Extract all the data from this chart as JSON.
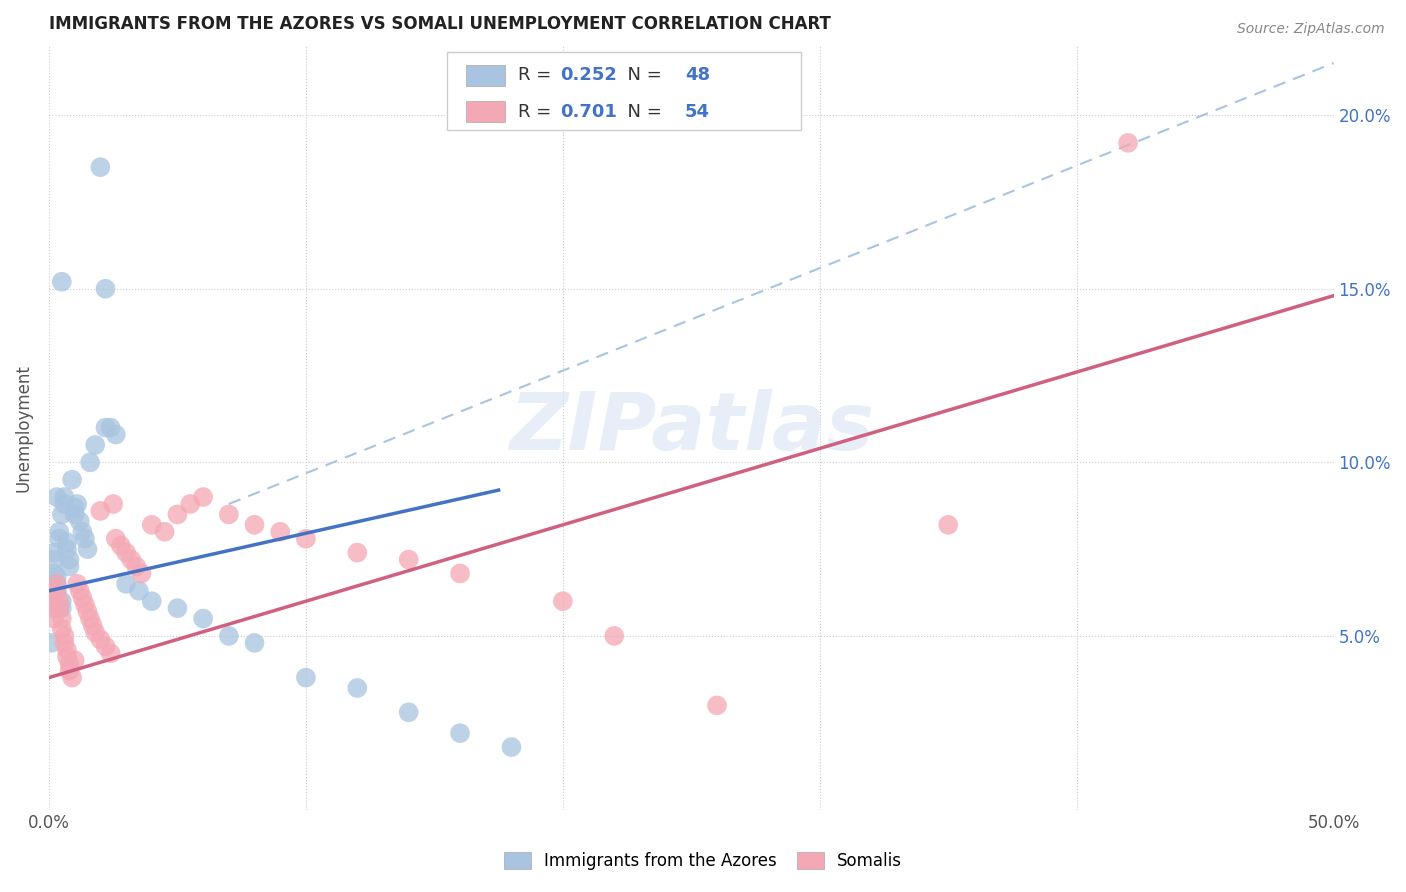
{
  "title": "IMMIGRANTS FROM THE AZORES VS SOMALI UNEMPLOYMENT CORRELATION CHART",
  "source": "Source: ZipAtlas.com",
  "ylabel": "Unemployment",
  "watermark": "ZIPatlas",
  "xlim": [
    0.0,
    0.5
  ],
  "ylim": [
    0.0,
    0.22
  ],
  "azores_color": "#a8c4e0",
  "somali_color": "#f4a7b5",
  "azores_line_color": "#4472c4",
  "somali_line_color": "#d06080",
  "dashed_line_color": "#a8c4e0",
  "legend_bottom_azores": "Immigrants from the Azores",
  "legend_bottom_somali": "Somalis",
  "azores_R": "0.252",
  "azores_N": "48",
  "somali_R": "0.701",
  "somali_N": "54",
  "azores_scatter_x": [
    0.001,
    0.001,
    0.002,
    0.002,
    0.002,
    0.003,
    0.003,
    0.003,
    0.004,
    0.004,
    0.005,
    0.005,
    0.005,
    0.006,
    0.006,
    0.007,
    0.007,
    0.008,
    0.008,
    0.009,
    0.01,
    0.01,
    0.011,
    0.012,
    0.013,
    0.014,
    0.015,
    0.016,
    0.018,
    0.02,
    0.022,
    0.024,
    0.026,
    0.03,
    0.035,
    0.04,
    0.05,
    0.06,
    0.07,
    0.08,
    0.1,
    0.12,
    0.14,
    0.16,
    0.18,
    0.022,
    0.005,
    0.003
  ],
  "azores_scatter_y": [
    0.065,
    0.048,
    0.072,
    0.068,
    0.074,
    0.063,
    0.065,
    0.067,
    0.08,
    0.078,
    0.085,
    0.06,
    0.058,
    0.088,
    0.09,
    0.075,
    0.077,
    0.072,
    0.07,
    0.095,
    0.085,
    0.087,
    0.088,
    0.083,
    0.08,
    0.078,
    0.075,
    0.1,
    0.105,
    0.185,
    0.15,
    0.11,
    0.108,
    0.065,
    0.063,
    0.06,
    0.058,
    0.055,
    0.05,
    0.048,
    0.038,
    0.035,
    0.028,
    0.022,
    0.018,
    0.11,
    0.152,
    0.09
  ],
  "somali_scatter_x": [
    0.001,
    0.001,
    0.002,
    0.002,
    0.003,
    0.003,
    0.004,
    0.004,
    0.005,
    0.005,
    0.006,
    0.006,
    0.007,
    0.007,
    0.008,
    0.008,
    0.009,
    0.01,
    0.011,
    0.012,
    0.013,
    0.014,
    0.015,
    0.016,
    0.017,
    0.018,
    0.02,
    0.022,
    0.024,
    0.026,
    0.028,
    0.03,
    0.032,
    0.034,
    0.036,
    0.04,
    0.045,
    0.05,
    0.055,
    0.06,
    0.07,
    0.08,
    0.09,
    0.1,
    0.12,
    0.14,
    0.16,
    0.2,
    0.22,
    0.26,
    0.35,
    0.02,
    0.025,
    0.42
  ],
  "somali_scatter_y": [
    0.063,
    0.06,
    0.058,
    0.055,
    0.065,
    0.063,
    0.06,
    0.058,
    0.055,
    0.052,
    0.05,
    0.048,
    0.046,
    0.044,
    0.042,
    0.04,
    0.038,
    0.043,
    0.065,
    0.063,
    0.061,
    0.059,
    0.057,
    0.055,
    0.053,
    0.051,
    0.049,
    0.047,
    0.045,
    0.078,
    0.076,
    0.074,
    0.072,
    0.07,
    0.068,
    0.082,
    0.08,
    0.085,
    0.088,
    0.09,
    0.085,
    0.082,
    0.08,
    0.078,
    0.074,
    0.072,
    0.068,
    0.06,
    0.05,
    0.03,
    0.082,
    0.086,
    0.088,
    0.192
  ],
  "azores_trendline_x": [
    0.0,
    0.175
  ],
  "azores_trendline_y": [
    0.063,
    0.092
  ],
  "somali_trendline_x": [
    0.0,
    0.5
  ],
  "somali_trendline_y": [
    0.038,
    0.148
  ],
  "dashed_trendline_x": [
    0.07,
    0.5
  ],
  "dashed_trendline_y": [
    0.088,
    0.215
  ]
}
